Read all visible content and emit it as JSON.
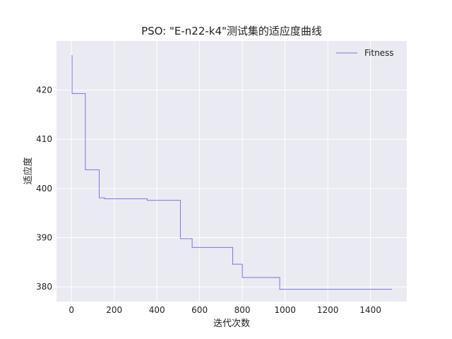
{
  "chart_data": {
    "type": "line",
    "title": "PSO: \"E-n22-k4\"测试集的适应度曲线",
    "xlabel": "迭代次数",
    "ylabel": "适应度",
    "xlim": [
      -70,
      1570
    ],
    "ylim": [
      377,
      430
    ],
    "xticks": [
      0,
      200,
      400,
      600,
      800,
      1000,
      1200,
      1400
    ],
    "yticks": [
      380,
      390,
      400,
      410,
      420
    ],
    "grid": true,
    "legend_position": "top-right",
    "series": [
      {
        "name": "Fitness",
        "color": "#7b78d6",
        "step": true,
        "x": [
          0,
          3,
          65,
          130,
          155,
          355,
          510,
          565,
          755,
          800,
          975,
          1500
        ],
        "y": [
          427,
          419.3,
          403.8,
          398.1,
          397.9,
          397.6,
          389.8,
          388.0,
          384.6,
          381.9,
          379.5,
          379.5
        ]
      }
    ]
  },
  "colors": {
    "plot_background": "#eaeaf2",
    "grid": "#ffffff",
    "text": "#222222"
  }
}
